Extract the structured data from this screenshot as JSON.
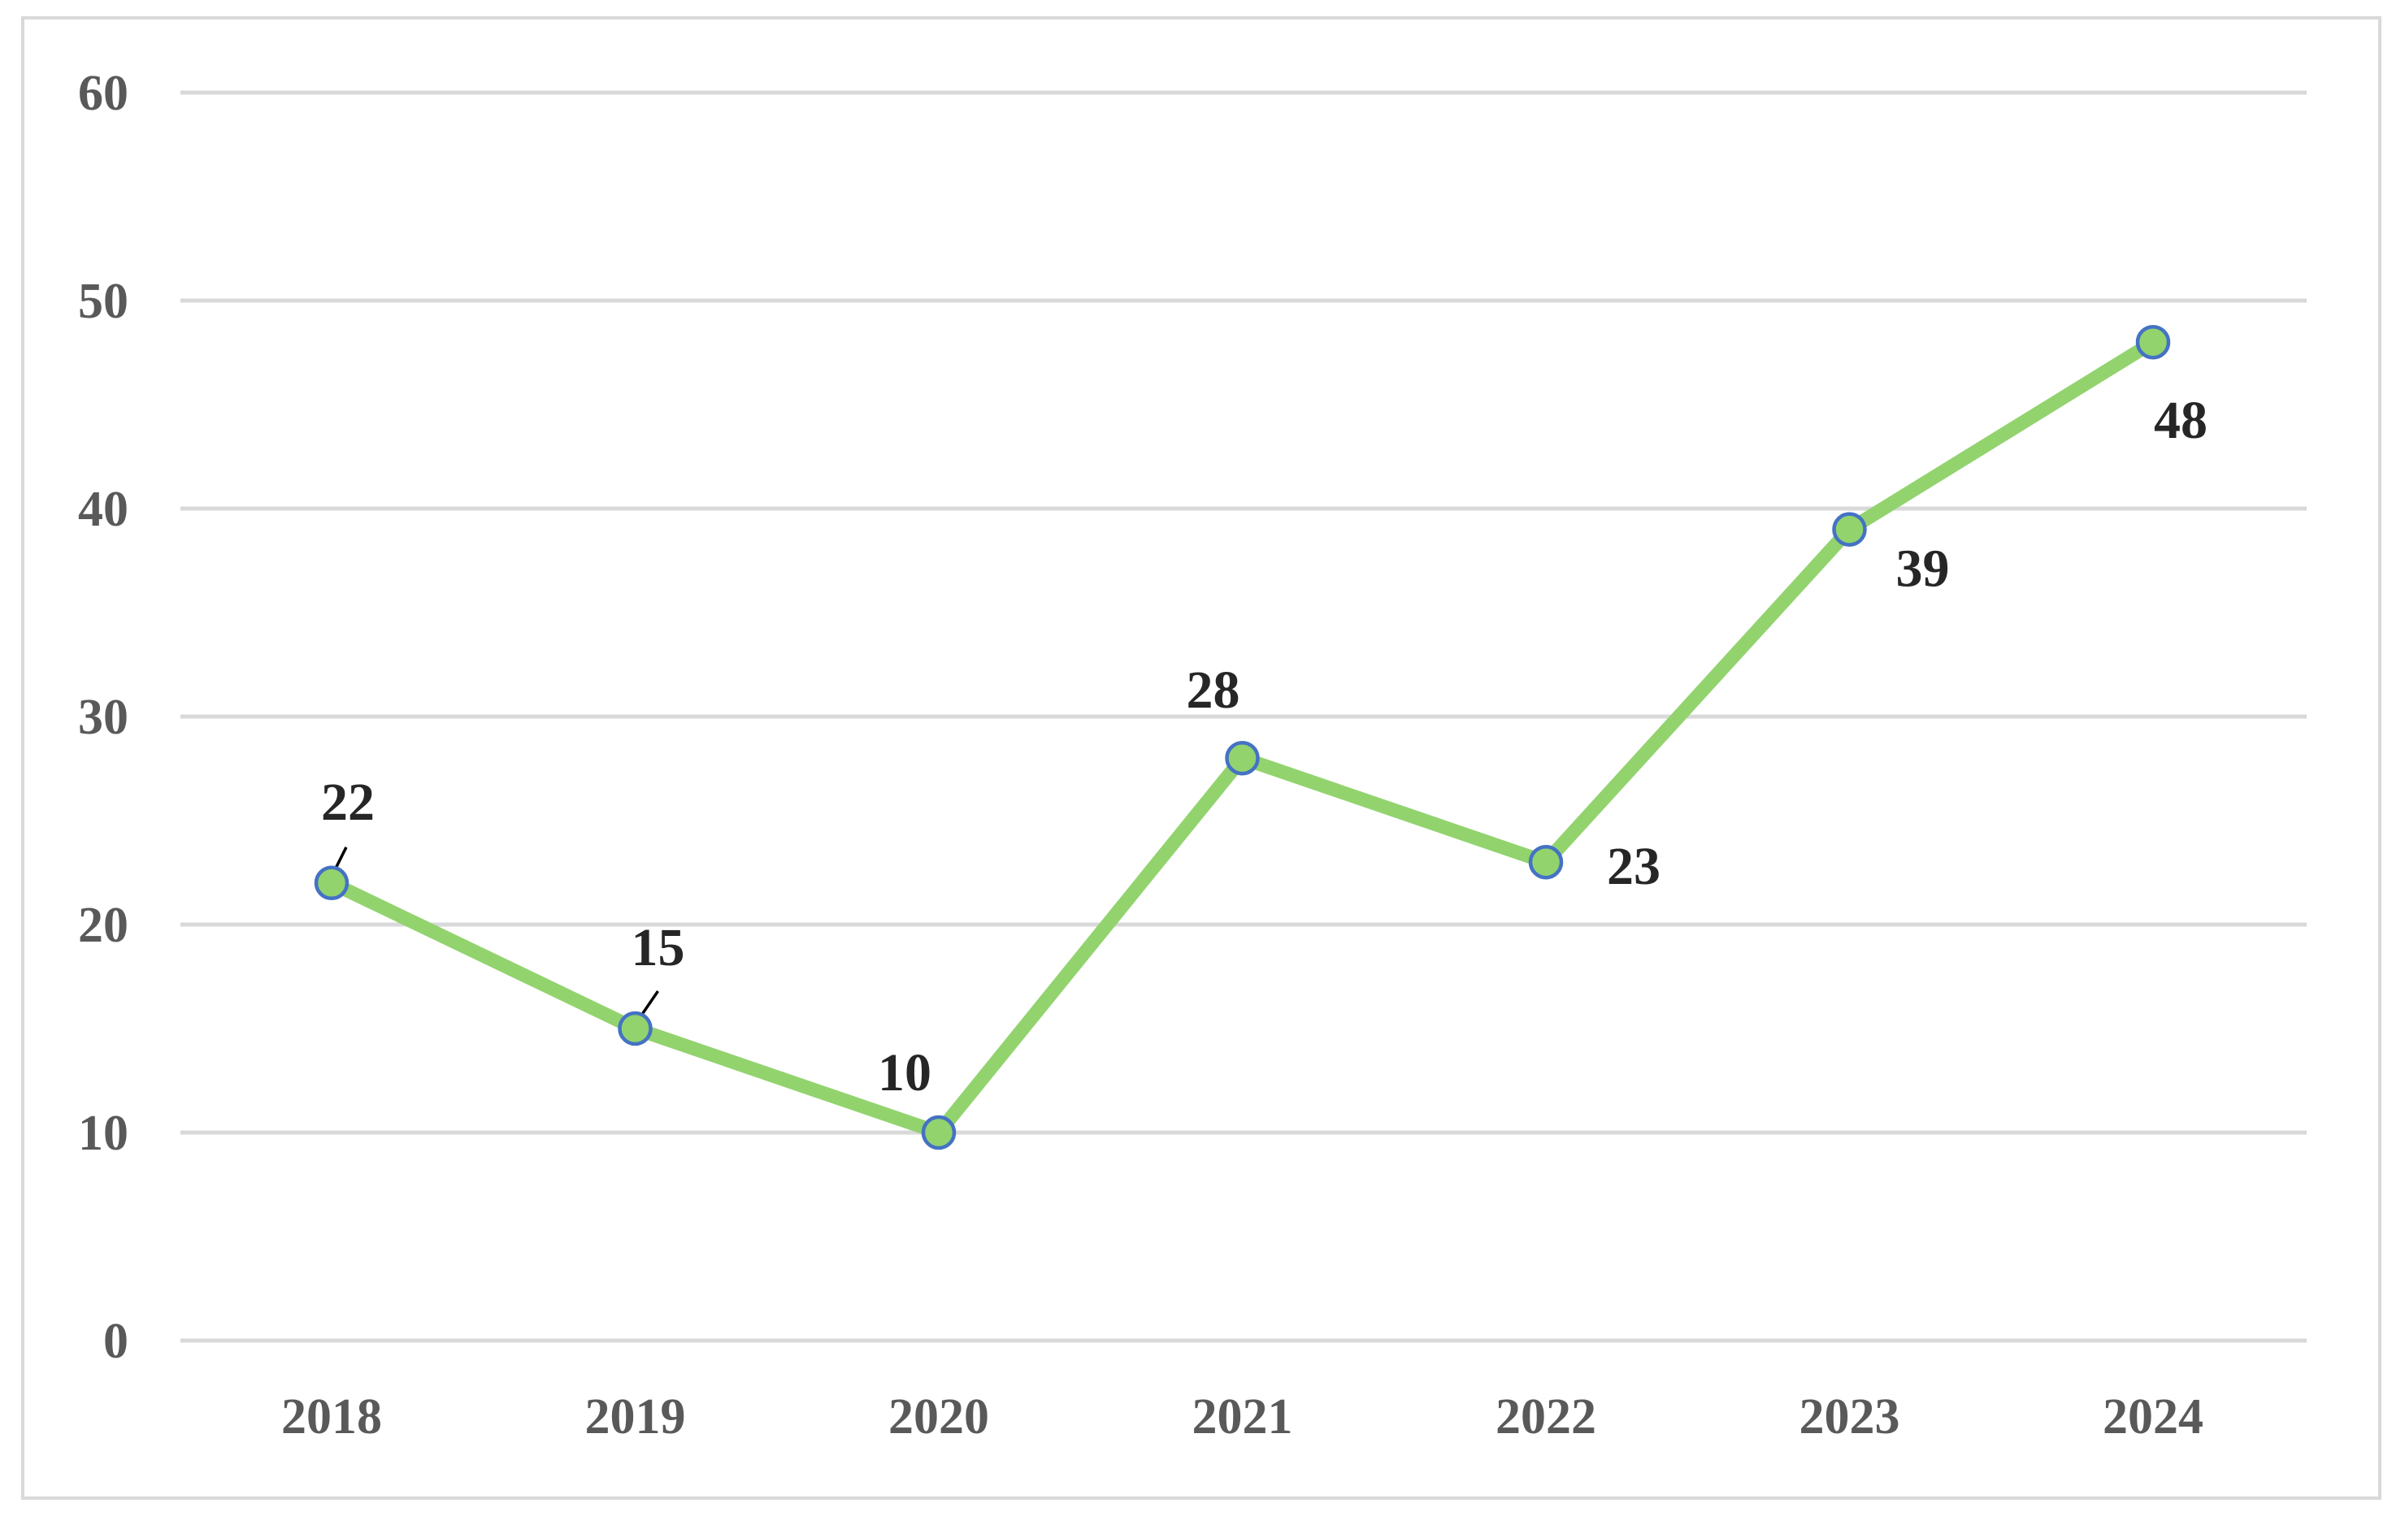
{
  "chart_data": {
    "type": "line",
    "title": "",
    "xlabel": "",
    "ylabel": "",
    "categories": [
      "2018",
      "2019",
      "2020",
      "2021",
      "2022",
      "2023",
      "2024"
    ],
    "series": [
      {
        "values": [
          22,
          15,
          10,
          28,
          23,
          39,
          48
        ],
        "line_color": "#92D36E",
        "marker_fill": "#92D36E",
        "marker_edge": "#4472C4"
      }
    ],
    "ylim": [
      0,
      60
    ],
    "yticks": [
      0,
      10,
      20,
      30,
      40,
      50,
      60
    ],
    "ytick_labels": [
      "0",
      "10",
      "20",
      "30",
      "40",
      "50",
      "60"
    ],
    "data_labels": [
      "22",
      "15",
      "10",
      "28",
      "23",
      "39",
      "48"
    ],
    "grid": true,
    "legend": "none",
    "colors": {
      "border": "#D9D9D9",
      "gridline": "#D9D9D9",
      "tick_text": "#595959",
      "label_text": "#262626",
      "leader_line": "#000000"
    }
  }
}
